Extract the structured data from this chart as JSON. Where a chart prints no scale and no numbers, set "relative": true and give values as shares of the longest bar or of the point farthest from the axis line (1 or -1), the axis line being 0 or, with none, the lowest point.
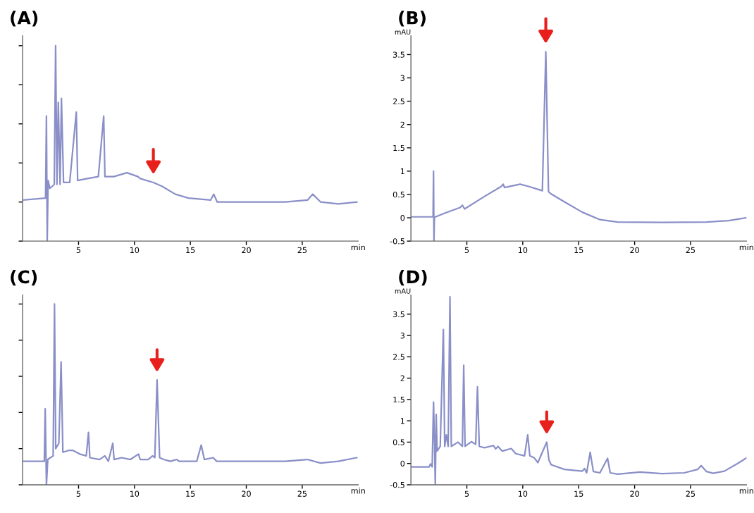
{
  "chart_data": [
    {
      "type": "line",
      "title": "(A)",
      "xlabel": "min",
      "relative": true,
      "tick_labels": "x",
      "xlim": [
        0,
        30
      ],
      "xticks": [
        5,
        10,
        15,
        20,
        25
      ],
      "series": [
        {
          "color": "#8a8fc8",
          "x": [
            0.08,
            2.05,
            2.13,
            2.2,
            2.28,
            2.44,
            2.83,
            2.95,
            3.07,
            3.19,
            3.35,
            3.47,
            3.66,
            4.21,
            4.8,
            4.92,
            5.79,
            6.77,
            7.25,
            7.36,
            8.15,
            9.33,
            10.31,
            10.51,
            11.69,
            12.48,
            13.66,
            14.84,
            16.81,
            17.09,
            17.4,
            19.57,
            23.5,
            25.47,
            25.94,
            26.65,
            28.23,
            29.88
          ],
          "values": [
            0.21,
            0.22,
            0.64,
            0.0,
            0.31,
            0.27,
            0.29,
            1.0,
            0.29,
            0.71,
            0.29,
            0.73,
            0.3,
            0.3,
            0.66,
            0.31,
            0.32,
            0.33,
            0.64,
            0.33,
            0.33,
            0.35,
            0.33,
            0.32,
            0.3,
            0.28,
            0.24,
            0.22,
            0.21,
            0.24,
            0.2,
            0.2,
            0.2,
            0.21,
            0.24,
            0.2,
            0.19,
            0.2
          ]
        }
      ]
    },
    {
      "type": "line",
      "title": "(B)",
      "xlabel": "min",
      "ylabel": "mAU",
      "xlim": [
        0,
        30
      ],
      "xticks": [
        5,
        10,
        15,
        20,
        25
      ],
      "ylim": [
        -0.5,
        3.9
      ],
      "yticks": [
        -0.5,
        0,
        0.5,
        1,
        1.5,
        2,
        2.5,
        3,
        3.5
      ],
      "series": [
        {
          "color": "#8a8fc8",
          "x": [
            0.08,
            1.98,
            2.02,
            2.06,
            2.1,
            2.2,
            3.02,
            4.4,
            4.6,
            4.8,
            6.59,
            8.06,
            8.25,
            8.37,
            9.76,
            10.56,
            11.75,
            12.06,
            12.3,
            12.54,
            13.73,
            15.32,
            16.9,
            18.49,
            22.46,
            26.43,
            28.41,
            30.0
          ],
          "values": [
            0.02,
            0.02,
            1.0,
            -0.5,
            0.02,
            0.02,
            0.1,
            0.22,
            0.27,
            0.19,
            0.46,
            0.67,
            0.72,
            0.65,
            0.72,
            0.67,
            0.58,
            3.56,
            0.56,
            0.51,
            0.34,
            0.12,
            -0.04,
            -0.09,
            -0.1,
            -0.09,
            -0.06,
            0.0
          ]
        }
      ]
    },
    {
      "type": "line",
      "title": "(C)",
      "xlabel": "min",
      "relative": true,
      "tick_labels": "x",
      "xlim": [
        0,
        30
      ],
      "xticks": [
        5,
        10,
        15,
        20,
        25
      ],
      "series": [
        {
          "color": "#8a8fc8",
          "x": [
            0.0,
            1.94,
            2.02,
            2.13,
            2.25,
            2.73,
            2.85,
            2.96,
            3.24,
            3.44,
            3.6,
            4.11,
            4.51,
            5.1,
            5.69,
            5.89,
            6.01,
            6.88,
            7.35,
            7.67,
            8.06,
            8.18,
            8.85,
            9.64,
            10.36,
            10.51,
            11.23,
            11.62,
            11.82,
            12.02,
            12.25,
            12.61,
            13.2,
            13.79,
            13.99,
            15.57,
            15.97,
            16.25,
            17.04,
            17.35,
            19.53,
            23.48,
            25.45,
            26.64,
            28.22,
            29.88
          ],
          "values": [
            0.13,
            0.13,
            0.42,
            0.0,
            0.14,
            0.16,
            1.0,
            0.2,
            0.23,
            0.68,
            0.18,
            0.19,
            0.19,
            0.17,
            0.16,
            0.29,
            0.15,
            0.14,
            0.16,
            0.13,
            0.23,
            0.14,
            0.15,
            0.14,
            0.17,
            0.14,
            0.14,
            0.16,
            0.15,
            0.58,
            0.15,
            0.14,
            0.13,
            0.14,
            0.13,
            0.13,
            0.22,
            0.14,
            0.15,
            0.13,
            0.13,
            0.13,
            0.14,
            0.12,
            0.13,
            0.15
          ]
        }
      ]
    },
    {
      "type": "line",
      "title": "(D)",
      "xlabel": "min",
      "ylabel": "mAU",
      "xlim": [
        0,
        30
      ],
      "xticks": [
        5,
        10,
        15,
        20,
        25
      ],
      "ylim": [
        -0.5,
        3.95
      ],
      "yticks": [
        -0.5,
        0,
        0.5,
        1,
        1.5,
        2,
        2.5,
        3,
        3.5
      ],
      "series": [
        {
          "color": "#8a8fc8",
          "x": [
            0.08,
            1.63,
            1.75,
            1.9,
            2.02,
            2.1,
            2.18,
            2.26,
            2.34,
            2.62,
            2.9,
            3.02,
            3.17,
            3.33,
            3.49,
            3.61,
            4.21,
            4.6,
            4.72,
            4.84,
            5.4,
            5.79,
            5.95,
            6.11,
            6.59,
            7.38,
            7.58,
            7.78,
            8.17,
            8.97,
            9.37,
            10.16,
            10.44,
            10.63,
            11.03,
            11.35,
            12.14,
            12.34,
            12.54,
            13.73,
            15.32,
            15.52,
            15.71,
            16.03,
            16.31,
            16.9,
            17.58,
            17.82,
            18.49,
            20.48,
            22.46,
            24.44,
            25.63,
            25.95,
            26.43,
            27.02,
            28.02,
            29.21,
            30.0
          ],
          "values": [
            -0.08,
            -0.08,
            -0.01,
            -0.08,
            1.44,
            0.56,
            -0.5,
            1.15,
            0.29,
            0.4,
            3.14,
            0.4,
            0.67,
            0.4,
            3.91,
            0.4,
            0.5,
            0.4,
            2.3,
            0.4,
            0.51,
            0.45,
            1.8,
            0.4,
            0.37,
            0.42,
            0.34,
            0.4,
            0.29,
            0.35,
            0.23,
            0.18,
            0.67,
            0.18,
            0.13,
            0.02,
            0.5,
            0.08,
            -0.03,
            -0.14,
            -0.18,
            -0.12,
            -0.22,
            0.26,
            -0.19,
            -0.22,
            0.12,
            -0.22,
            -0.25,
            -0.2,
            -0.24,
            -0.22,
            -0.14,
            -0.05,
            -0.19,
            -0.23,
            -0.18,
            0.0,
            0.13
          ]
        }
      ]
    }
  ]
}
